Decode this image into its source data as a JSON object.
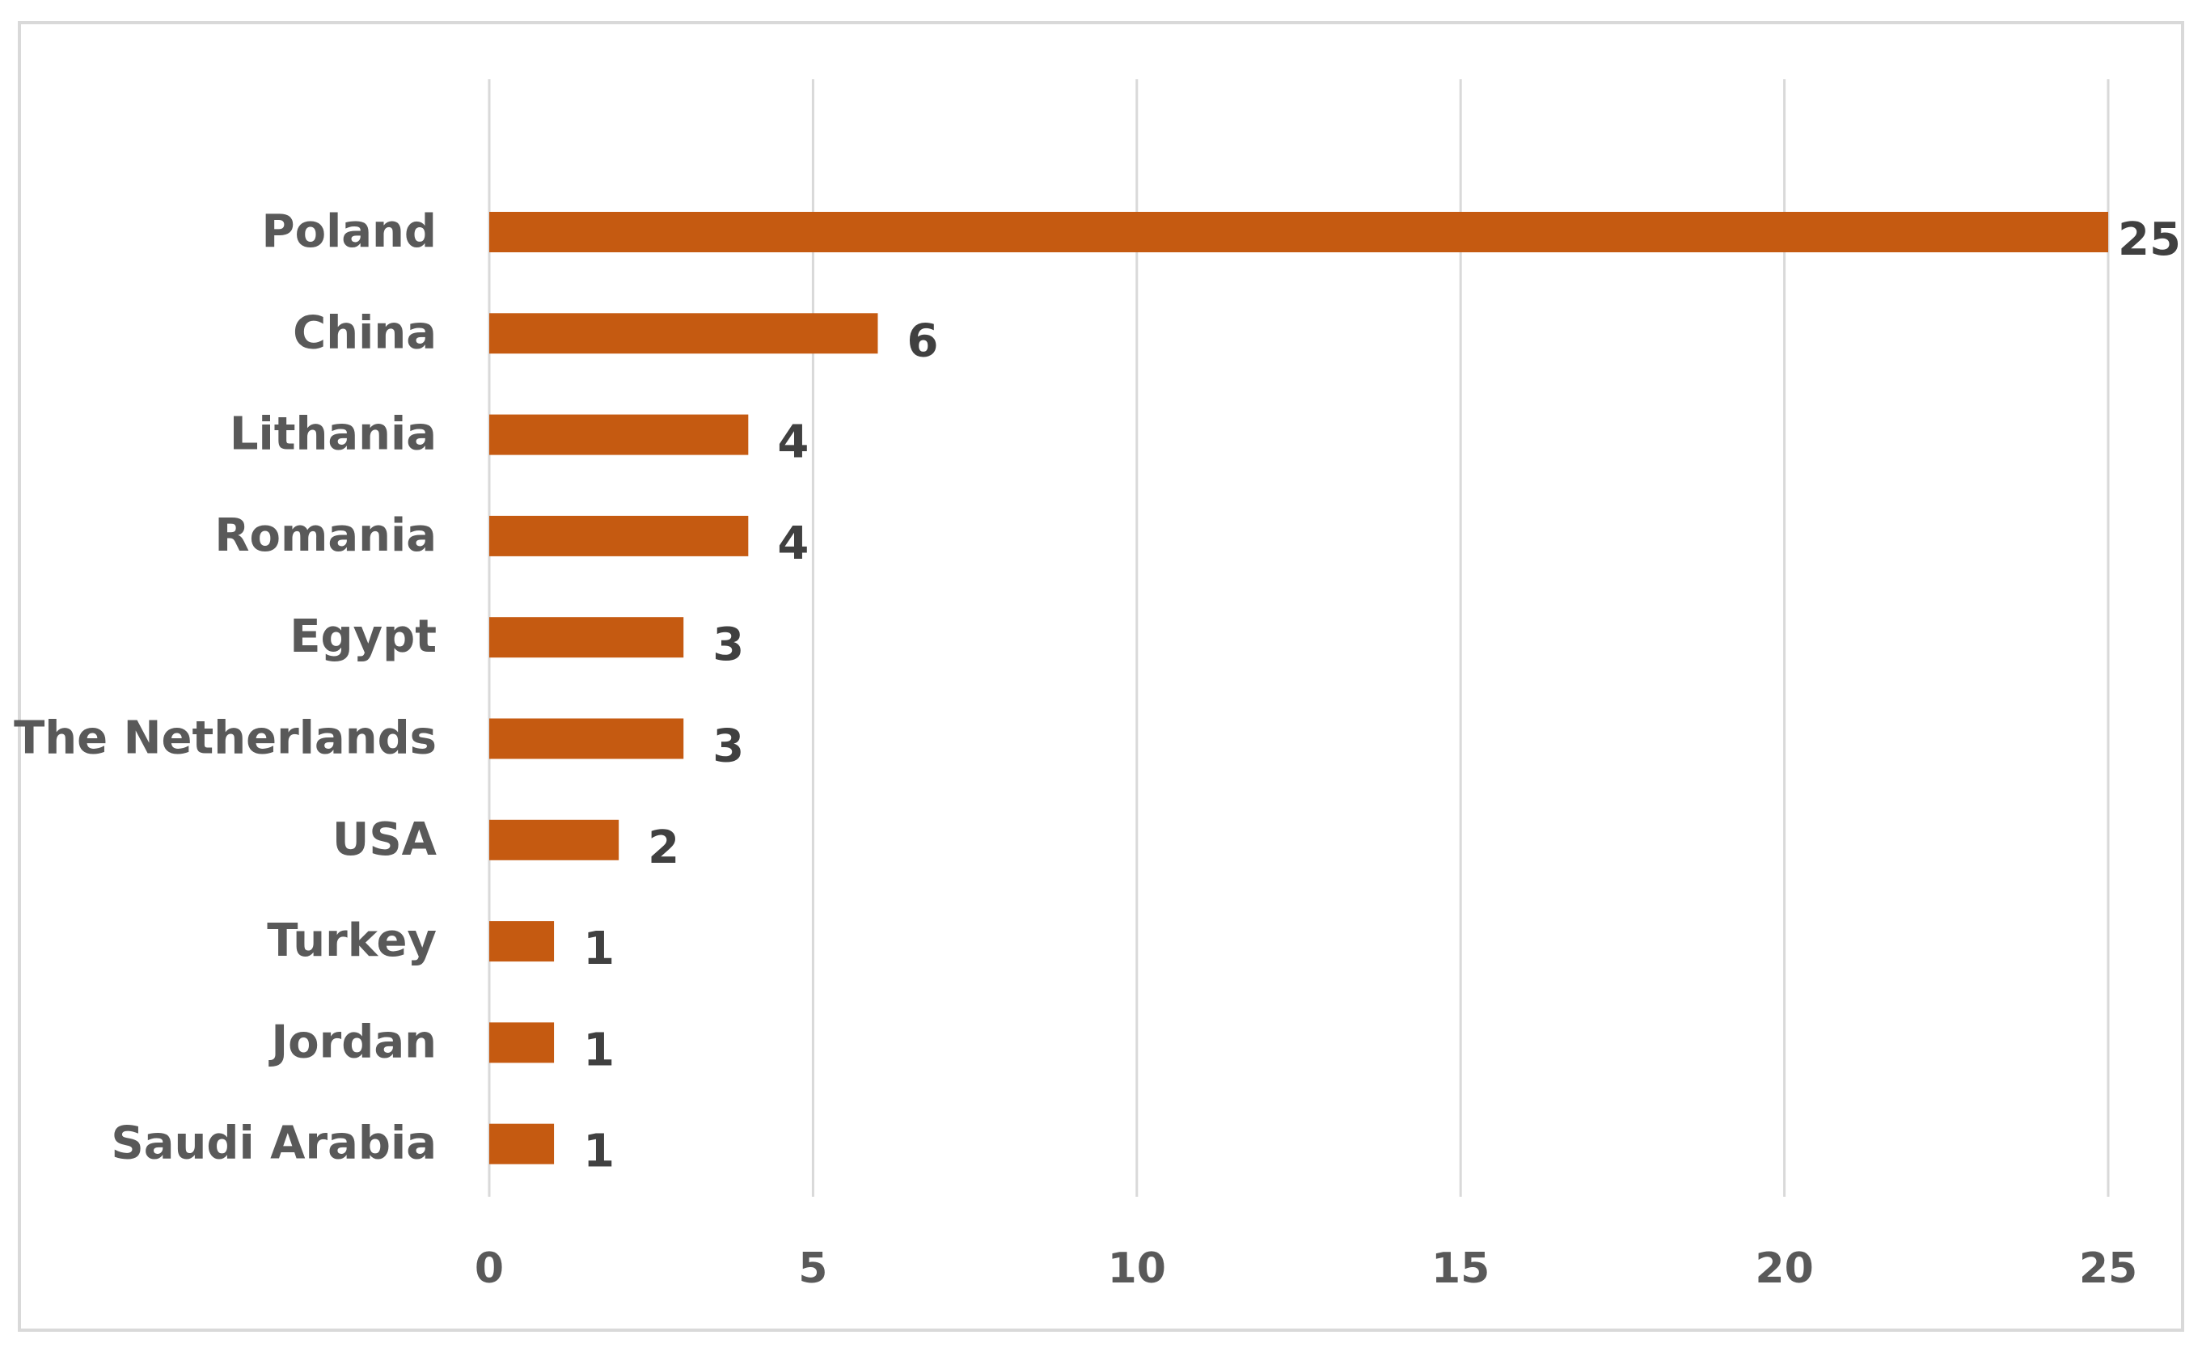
{
  "chart_data": {
    "type": "bar",
    "orientation": "horizontal",
    "categories": [
      "Poland",
      "China",
      "Lithania",
      "Romania",
      "Egypt",
      "The Netherlands",
      "USA",
      "Turkey",
      "Jordan",
      "Saudi Arabia"
    ],
    "values": [
      25,
      6,
      4,
      4,
      3,
      3,
      2,
      1,
      1,
      1
    ],
    "title": "",
    "xlabel": "",
    "ylabel": "",
    "xlim": [
      0,
      25
    ],
    "ticks": [
      0,
      5,
      10,
      15,
      20,
      25
    ],
    "grid": "vertical",
    "legend": "none",
    "data_labels": true,
    "colors": {
      "bar": "#c55a11",
      "grid": "#d9d9d9",
      "text": "#595959",
      "data_label": "#404040",
      "border": "#d9d9d9"
    }
  }
}
